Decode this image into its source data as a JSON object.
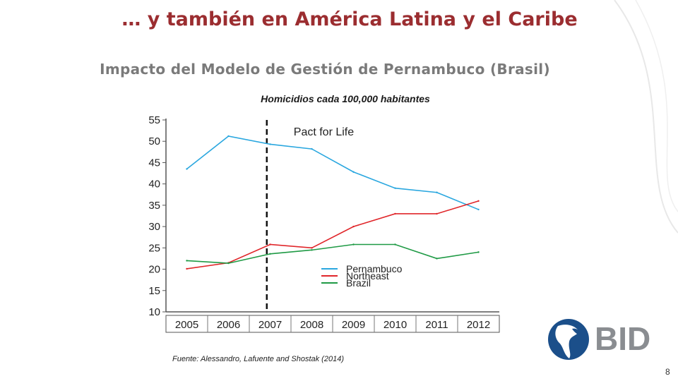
{
  "slide": {
    "title": "… y también en América Latina y el Caribe",
    "subtitle": "Impacto del Modelo de Gestión de Pernambuco (Brasil)",
    "source": "Fuente: Alessandro, Lafuente and Shostak (2014)",
    "page_number": "8",
    "logo_text": "BID"
  },
  "colors": {
    "title": "#9b2d30",
    "pernambuco": "#2aa7df",
    "northeast": "#e0262a",
    "brazil": "#1f9a45",
    "logo_blue": "#1b4f8a",
    "logo_gray": "#8a8d91"
  },
  "chart_data": {
    "type": "line",
    "title": "Homicidios cada 100,000 habitantes",
    "x": [
      2005,
      2006,
      2007,
      2008,
      2009,
      2010,
      2011,
      2012
    ],
    "x_tick_labels": [
      "2005",
      "2006",
      "2007",
      "2008",
      "2009",
      "2010",
      "2011",
      "2012"
    ],
    "ylim": [
      10,
      55
    ],
    "y_ticks": [
      10,
      15,
      20,
      25,
      30,
      35,
      40,
      45,
      50,
      55
    ],
    "grid": false,
    "legend_position": "lower-middle",
    "annotation": {
      "x": 2007,
      "label": "Pact for Life",
      "style": "dashed-vertical-line"
    },
    "series": [
      {
        "name": "Pernambuco",
        "color": "#2aa7df",
        "values": [
          43.5,
          51.2,
          49.3,
          48.2,
          42.8,
          39.0,
          38.0,
          34.0
        ]
      },
      {
        "name": "Northeast",
        "color": "#e0262a",
        "values": [
          20.1,
          21.5,
          25.8,
          25.0,
          30.0,
          33.0,
          33.0,
          36.0
        ]
      },
      {
        "name": "Brazil",
        "color": "#1f9a45",
        "values": [
          22.0,
          21.4,
          23.6,
          24.5,
          25.8,
          25.8,
          22.5,
          24.0
        ]
      }
    ]
  }
}
